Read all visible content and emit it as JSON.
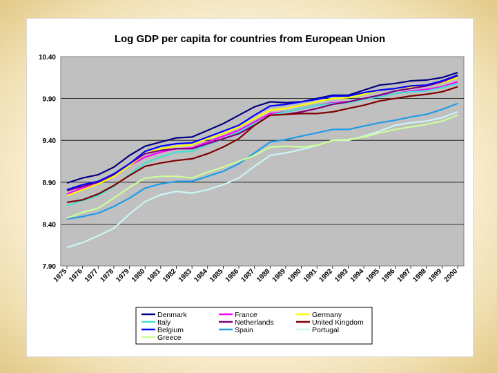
{
  "chart_data": {
    "type": "line",
    "title": "Log GDP per capita for countries from European Union",
    "xlabel": "",
    "ylabel": "",
    "ylim": [
      7.9,
      10.4
    ],
    "yticks": [
      "7.90",
      "8.40",
      "8.90",
      "9.40",
      "9.90",
      "10.40"
    ],
    "ytick_values": [
      7.9,
      8.4,
      8.9,
      9.4,
      9.9,
      10.4
    ],
    "grid": "horizontal",
    "legend_position": "bottom",
    "categories": [
      "1975",
      "1976",
      "1977",
      "1978",
      "1979",
      "1980",
      "1981",
      "1982",
      "1983",
      "1984",
      "1985",
      "1986",
      "1987",
      "1988",
      "1989",
      "1990",
      "1991",
      "1992",
      "1993",
      "1994",
      "1995",
      "1996",
      "1997",
      "1998",
      "1999",
      "2000"
    ],
    "series": [
      {
        "name": "Denmark",
        "color": "#000080",
        "values": [
          8.89,
          8.95,
          8.99,
          9.08,
          9.22,
          9.33,
          9.38,
          9.43,
          9.44,
          9.52,
          9.6,
          9.7,
          9.8,
          9.86,
          9.85,
          9.86,
          9.9,
          9.94,
          9.94,
          10.0,
          10.06,
          10.08,
          10.11,
          10.12,
          10.15,
          10.21
        ]
      },
      {
        "name": "France",
        "color": "#ff00ff",
        "values": [
          8.76,
          8.83,
          8.88,
          8.98,
          9.1,
          9.2,
          9.26,
          9.3,
          9.31,
          9.38,
          9.45,
          9.52,
          9.62,
          9.72,
          9.74,
          9.78,
          9.82,
          9.85,
          9.86,
          9.89,
          9.93,
          9.96,
          9.99,
          10.01,
          10.04,
          10.1
        ]
      },
      {
        "name": "Germany",
        "color": "#ffff00",
        "values": [
          8.74,
          8.81,
          8.88,
          8.97,
          9.1,
          9.24,
          9.3,
          9.33,
          9.35,
          9.42,
          9.48,
          9.56,
          9.66,
          9.76,
          9.78,
          9.82,
          9.86,
          9.9,
          9.91,
          9.95,
          10.0,
          10.02,
          10.04,
          10.06,
          10.09,
          10.15
        ]
      },
      {
        "name": "Italy",
        "color": "#40e0d0",
        "values": [
          8.62,
          8.68,
          8.74,
          8.85,
          8.99,
          9.13,
          9.2,
          9.26,
          9.27,
          9.35,
          9.42,
          9.5,
          9.6,
          9.7,
          9.74,
          9.78,
          9.82,
          9.84,
          9.85,
          9.89,
          9.92,
          9.96,
          9.98,
          9.99,
          10.03,
          10.08
        ]
      },
      {
        "name": "Netherlands",
        "color": "#800080",
        "values": [
          8.8,
          8.85,
          8.9,
          8.99,
          9.12,
          9.24,
          9.28,
          9.3,
          9.3,
          9.36,
          9.42,
          9.48,
          9.58,
          9.7,
          9.71,
          9.74,
          9.78,
          9.83,
          9.86,
          9.9,
          9.94,
          9.99,
          10.02,
          10.05,
          10.1,
          10.17
        ]
      },
      {
        "name": "United Kingdom",
        "color": "#800000",
        "values": [
          8.66,
          8.69,
          8.76,
          8.86,
          8.98,
          9.09,
          9.13,
          9.16,
          9.18,
          9.24,
          9.32,
          9.42,
          9.58,
          9.7,
          9.71,
          9.72,
          9.72,
          9.74,
          9.78,
          9.82,
          9.87,
          9.9,
          9.93,
          9.95,
          9.98,
          10.04
        ]
      },
      {
        "name": "Belgium",
        "color": "#0000ff",
        "values": [
          8.81,
          8.87,
          8.91,
          9.0,
          9.12,
          9.27,
          9.33,
          9.36,
          9.37,
          9.44,
          9.51,
          9.58,
          9.7,
          9.81,
          9.83,
          9.86,
          9.89,
          9.93,
          9.93,
          9.97,
          10.0,
          10.02,
          10.05,
          10.06,
          10.11,
          10.18
        ]
      },
      {
        "name": "Spain",
        "color": "#1e9be8",
        "values": [
          8.46,
          8.49,
          8.53,
          8.61,
          8.71,
          8.83,
          8.88,
          8.91,
          8.91,
          8.97,
          9.03,
          9.12,
          9.25,
          9.38,
          9.41,
          9.45,
          9.49,
          9.53,
          9.53,
          9.57,
          9.61,
          9.64,
          9.68,
          9.71,
          9.77,
          9.84
        ]
      },
      {
        "name": "Portugal",
        "color": "#ccf5f5",
        "values": [
          8.12,
          8.18,
          8.26,
          8.35,
          8.52,
          8.67,
          8.75,
          8.79,
          8.77,
          8.81,
          8.87,
          8.95,
          9.09,
          9.22,
          9.25,
          9.29,
          9.34,
          9.4,
          9.4,
          9.45,
          9.51,
          9.58,
          9.61,
          9.63,
          9.67,
          9.74
        ]
      },
      {
        "name": "Greece",
        "color": "#ccff99",
        "values": [
          8.47,
          8.54,
          8.59,
          8.71,
          8.84,
          8.95,
          8.97,
          8.97,
          8.95,
          9.02,
          9.08,
          9.15,
          9.22,
          9.32,
          9.33,
          9.32,
          9.34,
          9.4,
          9.41,
          9.44,
          9.49,
          9.53,
          9.56,
          9.59,
          9.63,
          9.7
        ]
      }
    ]
  }
}
